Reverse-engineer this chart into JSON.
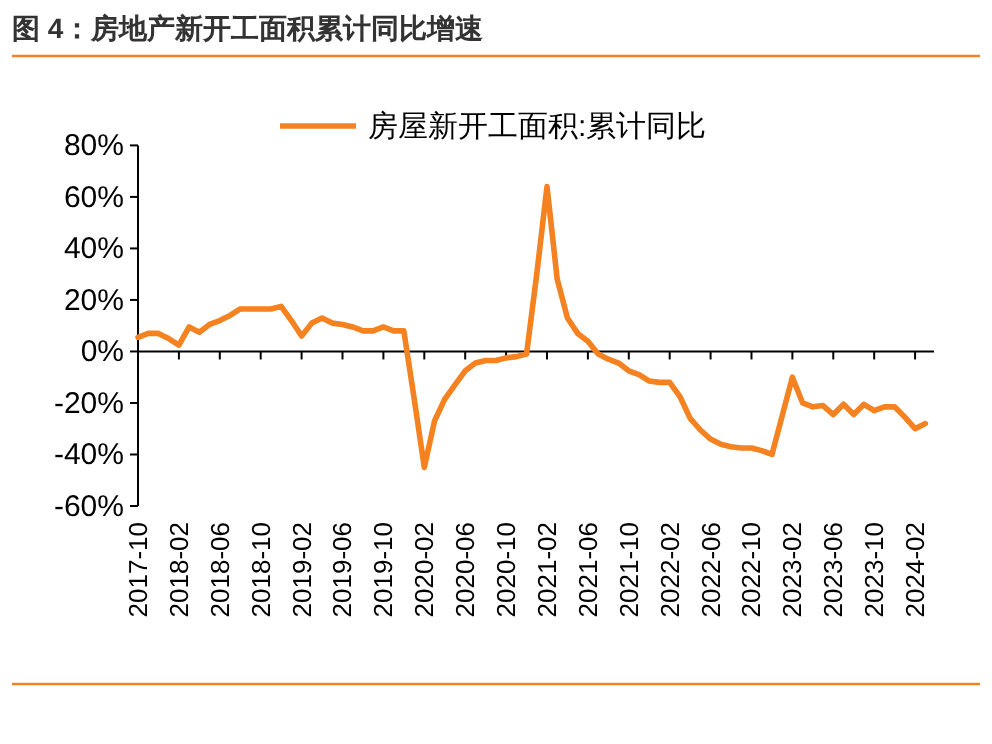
{
  "chart_data": {
    "type": "line",
    "title": "图 4：房地产新开工面积累计同比增速",
    "categories": [
      "2017-10",
      null,
      null,
      null,
      "2018-02",
      null,
      null,
      null,
      "2018-06",
      null,
      null,
      null,
      "2018-10",
      null,
      null,
      null,
      "2019-02",
      null,
      null,
      null,
      "2019-06",
      null,
      null,
      null,
      "2019-10",
      null,
      null,
      null,
      "2020-02",
      null,
      null,
      null,
      "2020-06",
      null,
      null,
      null,
      "2020-10",
      null,
      null,
      null,
      "2021-02",
      null,
      null,
      null,
      "2021-06",
      null,
      null,
      null,
      "2021-10",
      null,
      null,
      null,
      "2022-02",
      null,
      null,
      null,
      "2022-06",
      null,
      null,
      null,
      "2022-10",
      null,
      null,
      null,
      "2023-02",
      null,
      null,
      null,
      "2023-06",
      null,
      null,
      null,
      "2023-10",
      null,
      null,
      null,
      "2024-02",
      null
    ],
    "series": [
      {
        "name": "房屋新开工面积:累计同比",
        "color": "#f58220",
        "values": [
          5.5,
          7,
          7,
          5,
          2.5,
          9.5,
          7.5,
          10.5,
          12,
          14,
          16.5,
          16.5,
          16.5,
          16.5,
          17.5,
          12,
          6,
          11,
          13,
          11,
          10.5,
          9.5,
          8,
          8,
          9.5,
          8,
          8,
          -18,
          -45,
          -27,
          -18.5,
          -13,
          -7.5,
          -4.5,
          -3.5,
          -3.5,
          -2.5,
          -2,
          -1,
          30,
          64,
          28,
          13,
          7,
          4,
          -1,
          -3,
          -4.5,
          -7.5,
          -9,
          -11.5,
          -12,
          -12,
          -17.5,
          -26,
          -30.5,
          -34,
          -36,
          -37,
          -37.5,
          -37.5,
          -38.5,
          -40,
          -25,
          -10,
          -20,
          -21.5,
          -21,
          -24.5,
          -20.5,
          -24.5,
          -20.5,
          -23,
          -21.5,
          -21.5,
          -25.5,
          -30,
          -28
        ]
      }
    ],
    "ylim": [
      -60,
      80
    ],
    "yticks": [
      {
        "value": -60,
        "label": "-60%"
      },
      {
        "value": -40,
        "label": "-40%"
      },
      {
        "value": -20,
        "label": "-20%"
      },
      {
        "value": 0,
        "label": "0%"
      },
      {
        "value": 20,
        "label": "20%"
      },
      {
        "value": 40,
        "label": "40%"
      },
      {
        "value": 60,
        "label": "60%"
      },
      {
        "value": 80,
        "label": "80%"
      }
    ],
    "legend": "top",
    "marker": "none",
    "line_style": "solid"
  }
}
